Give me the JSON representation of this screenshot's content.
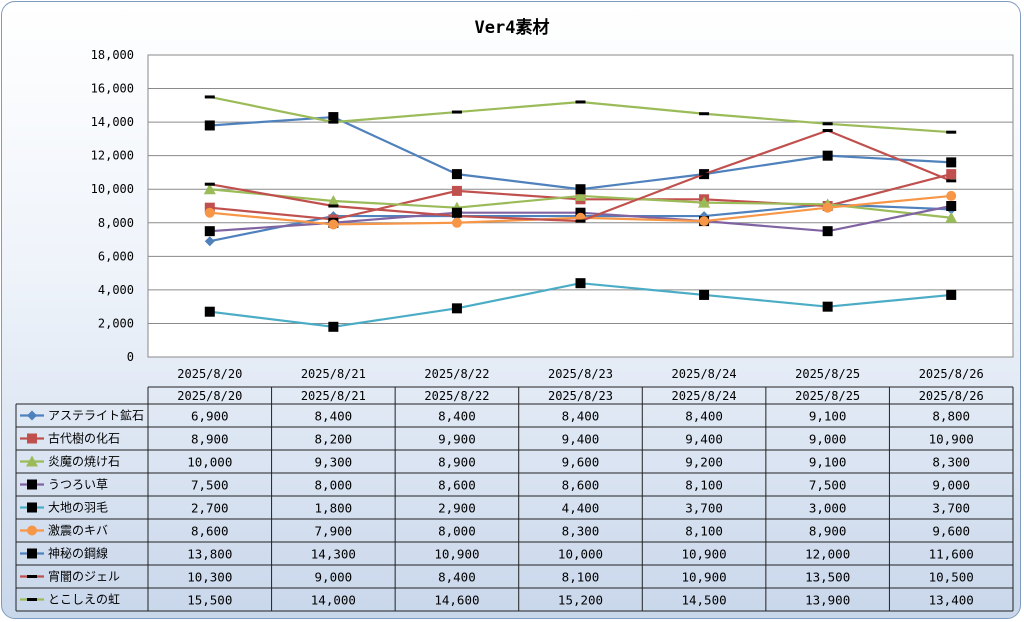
{
  "chart_data": {
    "type": "line",
    "title": "Ver4素材",
    "xlabel": "",
    "ylabel": "",
    "ylim": [
      0,
      18000
    ],
    "y_ticks": [
      "0",
      "2,000",
      "4,000",
      "6,000",
      "8,000",
      "10,000",
      "12,000",
      "14,000",
      "16,000",
      "18,000"
    ],
    "grid": true,
    "legend": "data-table-below",
    "categories": [
      "2025/8/20",
      "2025/8/21",
      "2025/8/22",
      "2025/8/23",
      "2025/8/24",
      "2025/8/25",
      "2025/8/26"
    ],
    "series": [
      {
        "name": "アステライト鉱石",
        "color": "#4f81bd",
        "marker": "diamond",
        "values": [
          6900,
          8400,
          8400,
          8400,
          8400,
          9100,
          8800
        ],
        "labels": [
          "6,900",
          "8,400",
          "8,400",
          "8,400",
          "8,400",
          "9,100",
          "8,800"
        ]
      },
      {
        "name": "古代樹の化石",
        "color": "#c0504d",
        "marker": "square",
        "values": [
          8900,
          8200,
          9900,
          9400,
          9400,
          9000,
          10900
        ],
        "labels": [
          "8,900",
          "8,200",
          "9,900",
          "9,400",
          "9,400",
          "9,000",
          "10,900"
        ]
      },
      {
        "name": "炎魔の焼け石",
        "color": "#9bbb59",
        "marker": "triangle",
        "values": [
          10000,
          9300,
          8900,
          9600,
          9200,
          9100,
          8300
        ],
        "labels": [
          "10,000",
          "9,300",
          "8,900",
          "9,600",
          "9,200",
          "9,100",
          "8,300"
        ]
      },
      {
        "name": "うつろい草",
        "color": "#8064a2",
        "marker": "blacksquare",
        "values": [
          7500,
          8000,
          8600,
          8600,
          8100,
          7500,
          9000
        ],
        "labels": [
          "7,500",
          "8,000",
          "8,600",
          "8,600",
          "8,100",
          "7,500",
          "9,000"
        ]
      },
      {
        "name": "大地の羽毛",
        "color": "#4bacc6",
        "marker": "blacksquare",
        "values": [
          2700,
          1800,
          2900,
          4400,
          3700,
          3000,
          3700
        ],
        "labels": [
          "2,700",
          "1,800",
          "2,900",
          "4,400",
          "3,700",
          "3,000",
          "3,700"
        ]
      },
      {
        "name": "激震のキバ",
        "color": "#f79646",
        "marker": "circle",
        "values": [
          8600,
          7900,
          8000,
          8300,
          8100,
          8900,
          9600
        ],
        "labels": [
          "8,600",
          "7,900",
          "8,000",
          "8,300",
          "8,100",
          "8,900",
          "9,600"
        ]
      },
      {
        "name": "神秘の鋼線",
        "color": "#4f81bd",
        "marker": "blacksquare",
        "values": [
          13800,
          14300,
          10900,
          10000,
          10900,
          12000,
          11600
        ],
        "labels": [
          "13,800",
          "14,300",
          "10,900",
          "10,000",
          "10,900",
          "12,000",
          "11,600"
        ]
      },
      {
        "name": "宵闇のジェル",
        "color": "#c0504d",
        "marker": "dash",
        "values": [
          10300,
          9000,
          8400,
          8100,
          10900,
          13500,
          10500
        ],
        "labels": [
          "10,300",
          "9,000",
          "8,400",
          "8,100",
          "10,900",
          "13,500",
          "10,500"
        ]
      },
      {
        "name": "とこしえの虹",
        "color": "#9bbb59",
        "marker": "dash",
        "values": [
          15500,
          14000,
          14600,
          15200,
          14500,
          13900,
          13400
        ],
        "labels": [
          "15,500",
          "14,000",
          "14,600",
          "15,200",
          "14,500",
          "13,900",
          "13,400"
        ]
      }
    ]
  }
}
